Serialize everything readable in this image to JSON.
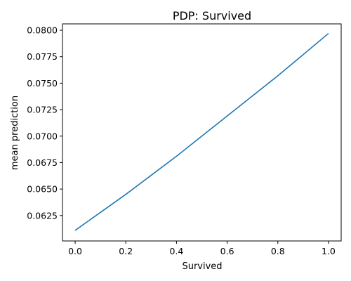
{
  "chart_data": {
    "type": "line",
    "title": "PDP: Survived",
    "xlabel": "Survived",
    "ylabel": "mean prediction",
    "xlim": [
      -0.05,
      1.05
    ],
    "ylim": [
      0.0601,
      0.0806
    ],
    "xticks": [
      0.0,
      0.2,
      0.4,
      0.6,
      0.8,
      1.0
    ],
    "xtick_labels": [
      "0.0",
      "0.2",
      "0.4",
      "0.6",
      "0.8",
      "1.0"
    ],
    "yticks": [
      0.0625,
      0.065,
      0.0675,
      0.07,
      0.0725,
      0.075,
      0.0775,
      0.08
    ],
    "ytick_labels": [
      "0.0625",
      "0.0650",
      "0.0675",
      "0.0700",
      "0.0725",
      "0.0750",
      "0.0775",
      "0.0800"
    ],
    "grid": false,
    "series": [
      {
        "color": "#1f77b4",
        "x": [
          0.0,
          0.1,
          0.2,
          0.3,
          0.4,
          0.5,
          0.6,
          0.7,
          0.8,
          0.9,
          1.0
        ],
        "y": [
          0.0611,
          0.0628,
          0.0645,
          0.0663,
          0.0681,
          0.07,
          0.0719,
          0.0738,
          0.0757,
          0.0777,
          0.0797
        ]
      }
    ]
  }
}
